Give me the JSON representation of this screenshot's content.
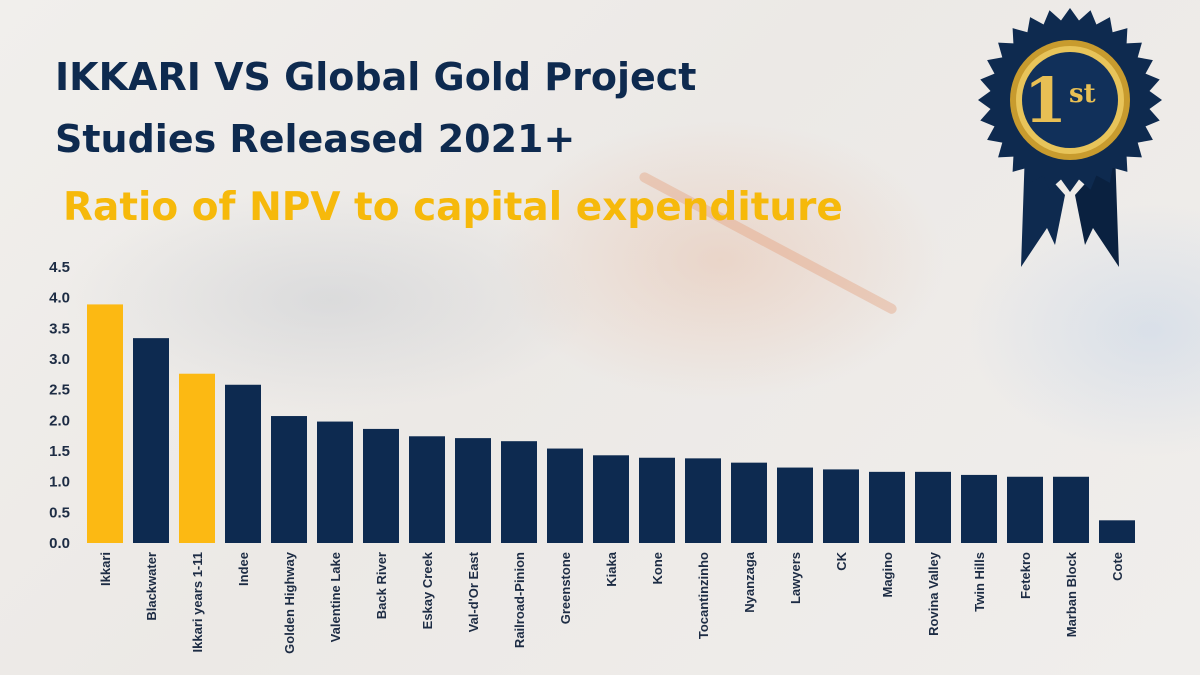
{
  "title_line_1": "IKKARI VS Global Gold Project",
  "title_line_2": "Studies Released 2021+",
  "subtitle": "Ratio of NPV to capital expenditure",
  "badge": {
    "number": "1",
    "suffix": "st"
  },
  "colors": {
    "highlight": "#FCB913",
    "default": "#0D2A50",
    "title": "#0E2A4F",
    "subtitle": "#F6B90B"
  },
  "chart_data": {
    "type": "bar",
    "title": "Ratio of NPV to capital expenditure",
    "ylim": [
      0,
      4.5
    ],
    "yticks": [
      "0.0",
      "0.5",
      "1.0",
      "1.5",
      "2.0",
      "2.5",
      "3.0",
      "3.5",
      "4.0",
      "4.5"
    ],
    "grid": false,
    "categories": [
      "Ikkari",
      "Blackwater",
      "Ikkari years 1-11",
      "Indee",
      "Golden Highway",
      "Valentine Lake",
      "Back River",
      "Eskay Creek",
      "Val-d'Or East",
      "Railroad-Pinion",
      "Greenstone",
      "Kiaka",
      "Kone",
      "Tocantinzinho",
      "Nyanzaga",
      "Lawyers",
      "CK",
      "Magino",
      "Rovina Valley",
      "Twin Hills",
      "Fetekro",
      "Marban Block",
      "Cote"
    ],
    "values": [
      3.89,
      3.34,
      2.76,
      2.58,
      2.07,
      1.98,
      1.86,
      1.74,
      1.71,
      1.66,
      1.54,
      1.43,
      1.39,
      1.38,
      1.31,
      1.23,
      1.2,
      1.16,
      1.16,
      1.11,
      1.08,
      1.08,
      0.37
    ],
    "highlighted": [
      "Ikkari",
      "Ikkari years 1-11"
    ]
  }
}
